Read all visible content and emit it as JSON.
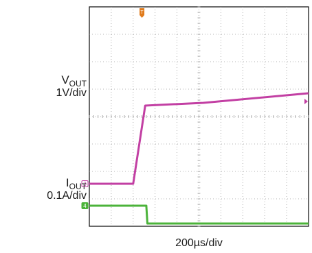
{
  "chart_data": {
    "type": "line",
    "title": "",
    "grid": true,
    "divisions": {
      "x": 10,
      "y": 8
    },
    "time_scale": "200µs/div",
    "series": [
      {
        "name": "VOUT",
        "label_main": "V",
        "label_sub": "OUT",
        "scale": "1V/div",
        "channel": "3",
        "color": "#c23fa3",
        "x_div": [
          0,
          2.0,
          2.55,
          5.2,
          10
        ],
        "y_div": [
          1.55,
          1.55,
          4.4,
          4.5,
          4.85
        ]
      },
      {
        "name": "IOUT",
        "label_main": "I",
        "label_sub": "OUT",
        "scale": "0.1A/div",
        "channel": "4",
        "color": "#4bb33a",
        "x_div": [
          0,
          2.6,
          2.65,
          10
        ],
        "y_div": [
          0.75,
          0.75,
          0.1,
          0.1
        ]
      }
    ],
    "trigger_marker": {
      "label": "T",
      "color": "#e07b1c",
      "x_div": 2.4
    },
    "trigger_level_marker": {
      "color": "#c23fa3",
      "y_div": 4.55
    }
  }
}
